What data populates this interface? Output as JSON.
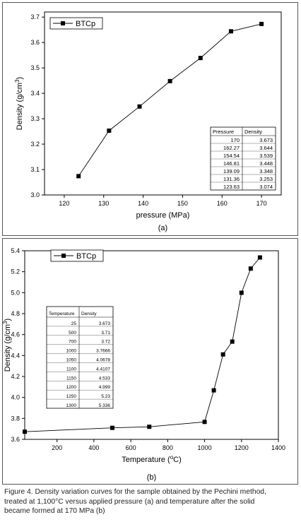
{
  "chart_data": [
    {
      "type": "line",
      "panel_label": "(a)",
      "title": "",
      "xlabel": "pressure (MPa)",
      "ylabel_main": "Density (g/cm",
      "ylabel_sup": "3",
      "ylabel_end": ")",
      "xlim": [
        115,
        175
      ],
      "ylim": [
        3.0,
        3.72
      ],
      "xticks": [
        120,
        130,
        140,
        150,
        160,
        170
      ],
      "yticks": [
        3.0,
        3.1,
        3.2,
        3.3,
        3.4,
        3.5,
        3.6,
        3.7
      ],
      "ytick_decimals": 1,
      "grid": false,
      "legend_position": "top-left",
      "series": [
        {
          "name": "BTCp",
          "x": [
            123.63,
            131.36,
            139.09,
            146.81,
            154.54,
            162.27,
            170
          ],
          "y": [
            3.074,
            3.253,
            3.348,
            3.448,
            3.539,
            3.644,
            3.673
          ]
        }
      ],
      "table": {
        "position": "bottom-right",
        "headers": [
          "Pressure",
          "Density"
        ],
        "rows": [
          [
            "170",
            "3.673"
          ],
          [
            "162.27",
            "3.644"
          ],
          [
            "154.54",
            "3.539"
          ],
          [
            "146.81",
            "3.448"
          ],
          [
            "139.09",
            "3.348"
          ],
          [
            "131.36",
            "3.253"
          ],
          [
            "123.63",
            "3.074"
          ]
        ]
      }
    },
    {
      "type": "line",
      "panel_label": "(b)",
      "title": "",
      "xlabel_main": "Temperature (",
      "xlabel_sup": "o",
      "xlabel_end": "C)",
      "ylabel_main": "Density (g/cm",
      "ylabel_sup": "3",
      "ylabel_end": ")",
      "xlim": [
        25,
        1400
      ],
      "ylim": [
        3.6,
        5.4
      ],
      "xticks": [
        200,
        400,
        600,
        800,
        1000,
        1200,
        1400
      ],
      "yticks": [
        3.6,
        3.8,
        4.0,
        4.2,
        4.4,
        4.6,
        4.8,
        5.0,
        5.2,
        5.4
      ],
      "ytick_decimals": 1,
      "grid": false,
      "legend_position": "top-left",
      "series": [
        {
          "name": "BTCp",
          "x": [
            25,
            500,
            700,
            1000,
            1050,
            1100,
            1150,
            1200,
            1250,
            1300
          ],
          "y": [
            3.673,
            3.71,
            3.72,
            3.7666,
            4.0678,
            4.4107,
            4.533,
            4.999,
            5.23,
            5.336
          ]
        }
      ],
      "table": {
        "position": "left",
        "headers": [
          "Temperature",
          "Density"
        ],
        "rows": [
          [
            "25",
            "3.673"
          ],
          [
            "500",
            "3.71"
          ],
          [
            "700",
            "3.72"
          ],
          [
            "1000",
            "3.7666"
          ],
          [
            "1050",
            "4.0678"
          ],
          [
            "1100",
            "4.4107"
          ],
          [
            "1150",
            "4.533"
          ],
          [
            "1200",
            "4.999"
          ],
          [
            "1250",
            "5.23"
          ],
          [
            "1300",
            "5.336"
          ]
        ]
      }
    }
  ],
  "caption": {
    "line1": "Figure 4. Density variation curves for the sample obtained by the Pechini method,",
    "line2": "treated at 1,100°C versus applied pressure (a) and temperature after the solid",
    "line3": "became formed at 170 MPa (b)"
  },
  "colors": {
    "line": "#000000",
    "marker": "#000000",
    "frame": "#555555"
  }
}
